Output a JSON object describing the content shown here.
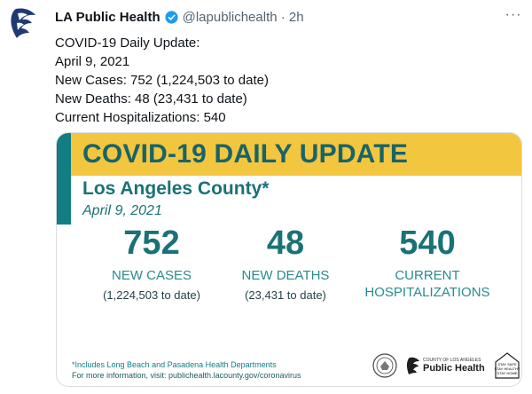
{
  "tweet": {
    "display_name": "LA Public Health",
    "handle_time": "@lapublichealth · 2h",
    "more_label": "···",
    "lines": [
      "COVID-19 Daily Update:",
      "April 9, 2021",
      "New Cases: 752 (1,224,503 to date)",
      "New Deaths: 48 (23,431 to date)",
      "Current Hospitalizations: 540"
    ]
  },
  "card": {
    "banner": "COVID-19 DAILY UPDATE",
    "county": "Los Angeles County*",
    "date": "April 9, 2021",
    "stats": [
      {
        "value": "752",
        "label_line1": "NEW CASES",
        "label_line2": "",
        "sub": "(1,224,503 to date)"
      },
      {
        "value": "48",
        "label_line1": "NEW DEATHS",
        "label_line2": "",
        "sub": "(23,431 to date)"
      },
      {
        "value": "540",
        "label_line1": "CURRENT",
        "label_line2": "HOSPITALIZATIONS",
        "sub": ""
      }
    ],
    "footnote_sources": "*Includes Long Beach and Pasadena Health Departments",
    "footnote_info": "For more information, visit: publichealth.lacounty.gov/coronavirus",
    "logo_county": "COUNTY OF LOS ANGELES",
    "logo_name": "Public Health",
    "badge_lines": [
      "STAY SAFE",
      "STAY HEALTHY",
      "STAY HOME"
    ]
  },
  "colors": {
    "teal": "#127d83",
    "banner_yellow": "#f3c63f",
    "verified_blue": "#1d9bf0",
    "muted_text": "#536471"
  }
}
